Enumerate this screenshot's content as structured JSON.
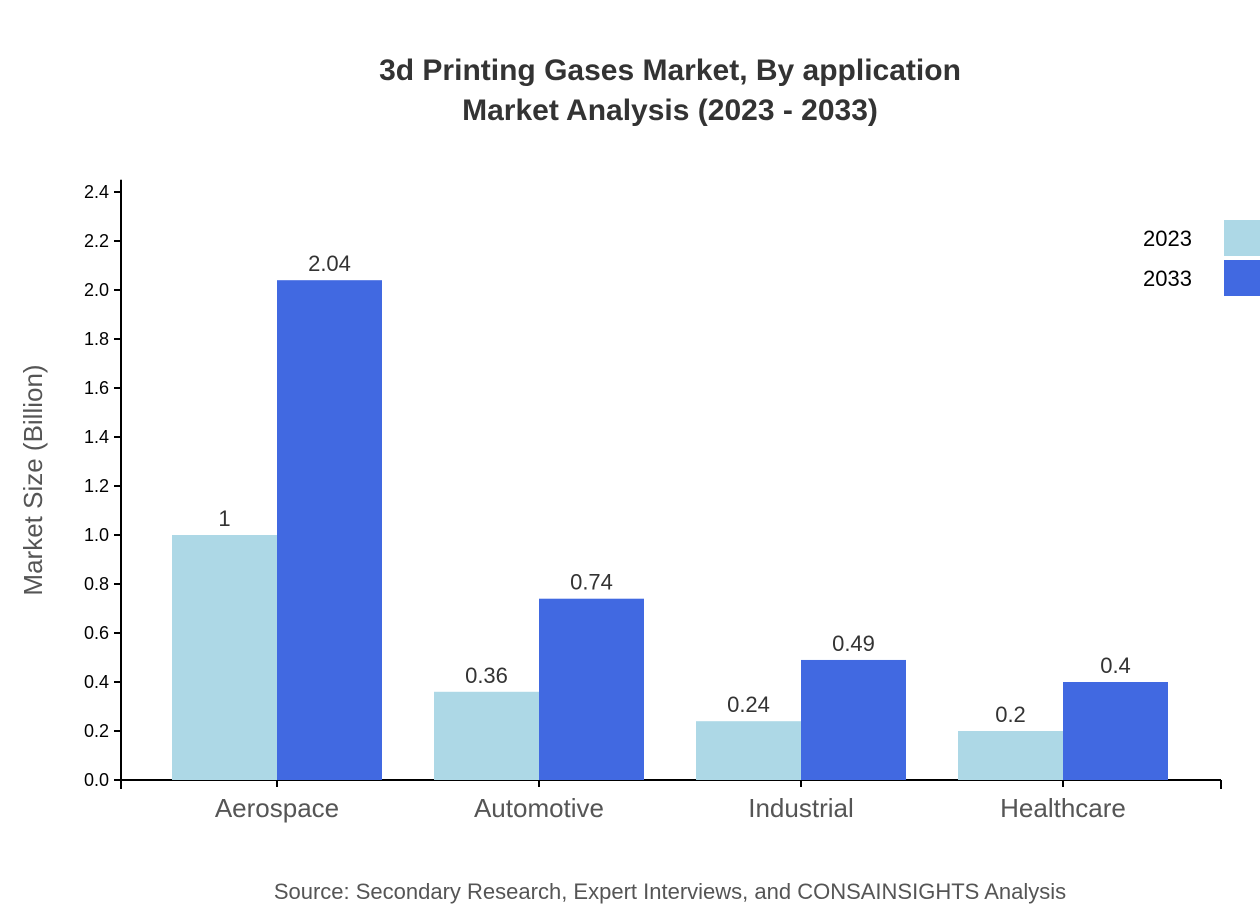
{
  "chart_data": {
    "type": "bar",
    "title": "3d Printing Gases Market, By application",
    "subtitle": "Market Analysis (2023 - 2033)",
    "xlabel": "",
    "ylabel": "Market Size (Billion)",
    "ylim": [
      0,
      2.45
    ],
    "yticks": [
      "0.0",
      "0.2",
      "0.4",
      "0.6",
      "0.8",
      "1.0",
      "1.2",
      "1.4",
      "1.6",
      "1.8",
      "2.0",
      "2.2",
      "2.4"
    ],
    "categories": [
      "Aerospace",
      "Automotive",
      "Industrial",
      "Healthcare"
    ],
    "series": [
      {
        "name": "2023",
        "color": "#add8e6",
        "values": [
          1,
          0.36,
          0.24,
          0.2
        ],
        "labels": [
          "1",
          "0.36",
          "0.24",
          "0.2"
        ]
      },
      {
        "name": "2033",
        "color": "#4169e1",
        "values": [
          2.04,
          0.74,
          0.49,
          0.4
        ],
        "labels": [
          "2.04",
          "0.74",
          "0.49",
          "0.4"
        ]
      }
    ],
    "grid": false,
    "legend_position": "top-right",
    "source": "Source: Secondary Research, Expert Interviews, and CONSAINSIGHTS Analysis"
  }
}
